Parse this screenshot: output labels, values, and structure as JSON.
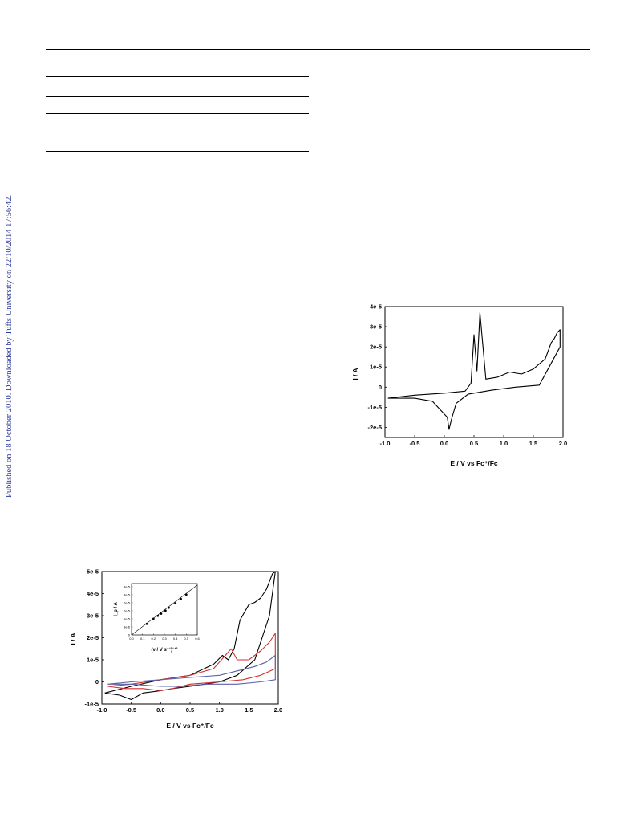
{
  "sidebar_note": "Published on 18 October 2010. Downloaded by Tufts University on 22/10/2014 17:56:42.",
  "chart_data": [
    {
      "type": "line",
      "title": "",
      "xlabel": "E / V vs Fc⁺/Fc",
      "ylabel": "I / A",
      "xlim": [
        -1.0,
        2.0
      ],
      "ylim": [
        -2.5e-05,
        4e-05
      ],
      "x_ticks": [
        "-1.0",
        "-0.5",
        "0.0",
        "0.5",
        "1.0",
        "1.5",
        "2.0"
      ],
      "y_ticks": [
        "4e-5",
        "3e-5",
        "2e-5",
        "1e-5",
        "0",
        "-1e-5",
        "-2e-5"
      ],
      "grid": false,
      "series": [
        {
          "color": "#000000",
          "x": [
            -0.95,
            -0.5,
            0.0,
            0.35,
            0.45,
            0.5,
            0.55,
            0.6,
            0.7,
            0.9,
            1.1,
            1.3,
            1.5,
            1.7,
            1.8,
            1.85,
            1.9,
            1.95,
            1.95,
            1.6,
            1.2,
            0.8,
            0.4,
            0.2,
            0.12,
            0.08,
            0.05,
            -0.2,
            -0.5,
            -0.95
          ],
          "y": [
            -5.5e-06,
            -4e-06,
            -3e-06,
            -2e-06,
            2e-06,
            2.6e-05,
            8e-06,
            3.7e-05,
            4e-06,
            5e-06,
            7.5e-06,
            6.5e-06,
            9e-06,
            1.4e-05,
            2.2e-05,
            2.4e-05,
            2.7e-05,
            2.85e-05,
            2e-05,
            1e-06,
            0.0,
            -1.5e-06,
            -3.5e-06,
            -8e-06,
            -1.6e-05,
            -2.1e-05,
            -1.5e-05,
            -7e-06,
            -5.5e-06,
            -5.5e-06
          ]
        }
      ]
    },
    {
      "type": "line",
      "title": "",
      "xlabel": "E / V vs Fc⁺/Fc",
      "ylabel": "I / A",
      "xlim": [
        -1.0,
        2.0
      ],
      "ylim": [
        -1e-05,
        5e-05
      ],
      "x_ticks": [
        "-1.0",
        "-0.5",
        "0.0",
        "0.5",
        "1.0",
        "1.5",
        "2.0"
      ],
      "y_ticks": [
        "5e-5",
        "4e-5",
        "3e-5",
        "2e-5",
        "1e-5",
        "0",
        "-1e-5"
      ],
      "grid": false,
      "series": [
        {
          "color": "#000000",
          "x": [
            -0.95,
            -0.5,
            0.0,
            0.5,
            0.9,
            1.05,
            1.15,
            1.25,
            1.35,
            1.5,
            1.6,
            1.7,
            1.8,
            1.9,
            1.95,
            1.85,
            1.6,
            1.3,
            1.0,
            0.5,
            0.2,
            0.0,
            -0.3,
            -0.5,
            -0.7,
            -0.95,
            -0.95
          ],
          "y": [
            -5e-06,
            -2e-06,
            1e-06,
            3e-06,
            8e-06,
            1.2e-05,
            1e-05,
            1.5e-05,
            2.8e-05,
            3.5e-05,
            3.6e-05,
            3.8e-05,
            4.2e-05,
            4.9e-05,
            5e-05,
            3e-05,
            1e-05,
            3e-06,
            0.0,
            -2e-06,
            -3e-06,
            -4e-06,
            -5e-06,
            -8e-06,
            -6e-06,
            -5e-06,
            -5e-06
          ]
        },
        {
          "color": "#d23030",
          "x": [
            -0.9,
            -0.5,
            0.0,
            0.5,
            0.9,
            1.1,
            1.2,
            1.3,
            1.5,
            1.7,
            1.85,
            1.95,
            1.95,
            1.7,
            1.4,
            1.0,
            0.5,
            0.2,
            0.0,
            -0.3,
            -0.6,
            -0.9
          ],
          "y": [
            -2e-06,
            -1e-06,
            1e-06,
            3e-06,
            6e-06,
            1.2e-05,
            1.5e-05,
            1e-05,
            1e-05,
            1.4e-05,
            1.8e-05,
            2.2e-05,
            6e-06,
            3e-06,
            1e-06,
            0.0,
            -1e-06,
            -3e-06,
            -4e-06,
            -3e-06,
            -3e-06,
            -2e-06
          ]
        },
        {
          "color": "#5a62a8",
          "x": [
            -0.9,
            -0.5,
            0.0,
            0.5,
            1.0,
            1.3,
            1.6,
            1.8,
            1.95,
            1.95,
            1.7,
            1.3,
            0.8,
            0.3,
            0.0,
            -0.5,
            -0.9
          ],
          "y": [
            -1e-06,
            0.0,
            1e-06,
            2e-06,
            3e-06,
            5e-06,
            7e-06,
            9e-06,
            1.2e-05,
            1e-06,
            0.0,
            -1e-06,
            -1e-06,
            -2e-06,
            -2e-06,
            -1e-06,
            -1e-06
          ]
        }
      ],
      "inset": {
        "type": "scatter",
        "xlabel": "(ν / V s⁻¹)¹ᐟ²",
        "ylabel": "I_p / A",
        "xlim": [
          0.0,
          0.6
        ],
        "ylim": [
          0.0,
          3.5e-05
        ],
        "x_ticks": [
          "0.0",
          "0.1",
          "0.2",
          "0.3",
          "0.4",
          "0.5",
          "0.6"
        ],
        "y_ticks": [
          "3e-5",
          "3e-5",
          "2e-5",
          "2e-5",
          "1e-5",
          "5e-6",
          "0"
        ],
        "points": {
          "x": [
            0.14,
            0.2,
            0.24,
            0.27,
            0.31,
            0.34,
            0.4,
            0.45,
            0.5
          ],
          "y": [
            7.5e-06,
            1.1e-05,
            1.3e-05,
            1.45e-05,
            1.65e-05,
            1.85e-05,
            2.15e-05,
            2.45e-05,
            2.75e-05
          ]
        },
        "fit": {
          "x": [
            0.0,
            0.6
          ],
          "y": [
            0.0,
            3.4e-05
          ]
        }
      }
    }
  ]
}
